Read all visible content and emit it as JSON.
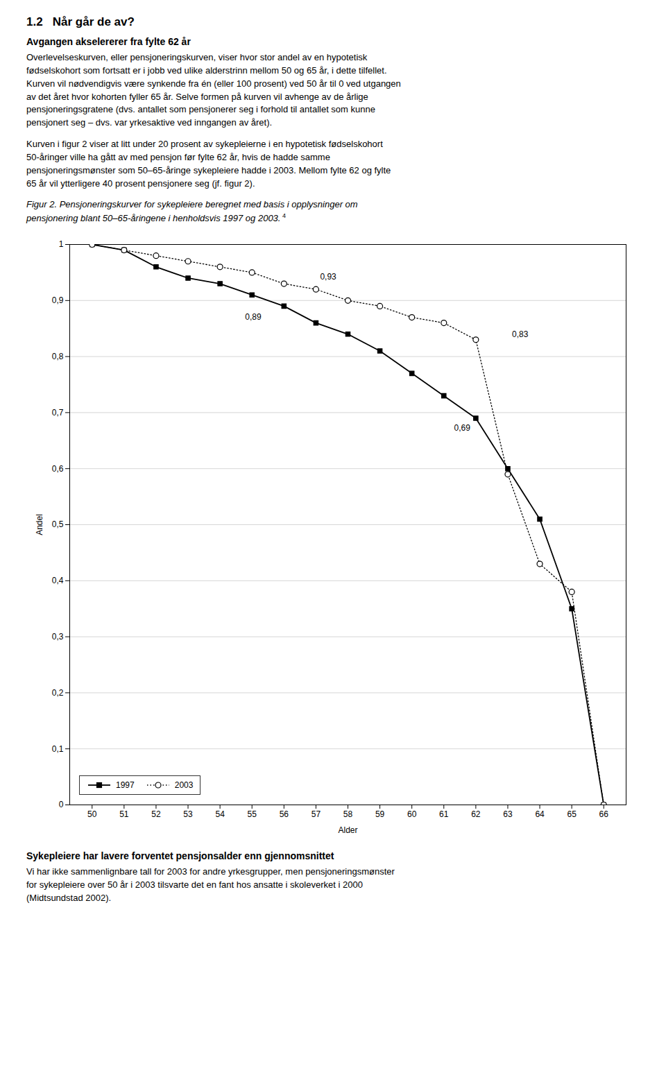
{
  "chart_data": {
    "type": "line",
    "title": "1.2   Når går de av?",
    "subtitle": "Avgangen akselererer fra fylte 62 år",
    "body": [
      [
        "Overlevelseskurven, eller pensjoneringskurven, viser hvor stor andel av en hypotetisk",
        "fødselskohort som fortsatt er i jobb ved ulike alderstrinn mellom 50 og 65 år, i dette tilfellet.",
        "Kurven vil nødvendigvis være synkende fra én (eller 100 prosent) ved 50 år til 0 ved utgangen",
        "av det året hvor kohorten fyller 65 år. Selve formen på kurven vil avhenge av de årlige",
        "pensjoneringsgratene (dvs. antallet som pensjonerer seg i forhold til antallet som kunne",
        "pensjonert seg – dvs. var yrkesaktive ved inngangen av året)."
      ],
      [
        "Kurven i figur 2 viser at litt under 20 prosent av sykepleierne i en hypotetisk fødselskohort",
        "50-åringer ville ha gått av med pensjon før fylte 62 år, hvis de hadde samme",
        "pensjoneringsmønster som 50–65-åringe sykepleiere hadde i 2003. Mellom fylte 62 og fylte",
        "65 år vil ytterligere 40 prosent pensjonere seg (jf. figur 2)."
      ]
    ],
    "caption": [
      "Figur 2.  Pensjoneringskurver for sykepleiere beregnet med basis i opplysninger om",
      "pensjonering blant 50–65-åringene i henholdsvis 1997 og 2003."
    ],
    "caption_mark": "4",
    "heading_below": "Sykepleiere har lavere forventet pensjonsalder enn gjennomsnittet",
    "body_below": [
      "Vi har ikke sammenlignbare tall for 2003 for andre yrkesgrupper, men pensjoneringsmønster",
      "for sykepleiere over 50 år i 2003 tilsvarte det en fant hos ansatte i skoleverket i 2000",
      "(Midtsundstad 2002)."
    ],
    "x_label": "Alder",
    "y_label": "Andel",
    "x": [
      50,
      51,
      52,
      53,
      54,
      55,
      56,
      57,
      58,
      59,
      60,
      61,
      62,
      63,
      64,
      65,
      66
    ],
    "series": [
      {
        "name": "1997",
        "color": "#000000",
        "marker": "square",
        "line_style": "solid",
        "values": [
          1.0,
          0.99,
          0.96,
          0.94,
          0.93,
          0.91,
          0.89,
          0.86,
          0.84,
          0.81,
          0.77,
          0.73,
          0.69,
          0.6,
          0.51,
          0.35,
          0.0
        ]
      },
      {
        "name": "2003",
        "color": "#000000",
        "marker": "circle",
        "line_style": "dotted",
        "values": [
          1.0,
          0.99,
          0.98,
          0.97,
          0.96,
          0.95,
          0.93,
          0.92,
          0.9,
          0.89,
          0.87,
          0.86,
          0.83,
          0.59,
          0.43,
          0.38,
          0.0
        ]
      }
    ],
    "annotations": [
      {
        "x": 55,
        "y": 0.89,
        "text": "0,89"
      },
      {
        "x": 57,
        "y": 0.93,
        "text": "0,93"
      },
      {
        "x": 62,
        "y": 0.69,
        "text": "0,69"
      },
      {
        "x": 63,
        "y": 0.83,
        "text": "0,83"
      }
    ],
    "xlim": [
      49.3,
      66.7
    ],
    "xticks": [
      50,
      51,
      52,
      53,
      54,
      55,
      56,
      57,
      58,
      59,
      60,
      61,
      62,
      63,
      64,
      65,
      66
    ],
    "ylim": [
      0,
      1.0
    ],
    "yticks": [
      0,
      {
        "value": 0.1,
        "label": "0,1"
      },
      {
        "value": 0.2,
        "label": "0,2"
      },
      {
        "value": 0.3,
        "label": "0,3"
      },
      {
        "value": 0.4,
        "label": "0,4"
      },
      {
        "value": 0.5,
        "label": "0,5"
      },
      {
        "value": 0.6,
        "label": "0,6"
      },
      {
        "value": 0.7,
        "label": "0,7"
      },
      {
        "value": 0.8,
        "label": "0,8"
      },
      {
        "value": 0.9,
        "label": "0,9"
      },
      1
    ],
    "grid": "y",
    "legend": "lower left"
  }
}
